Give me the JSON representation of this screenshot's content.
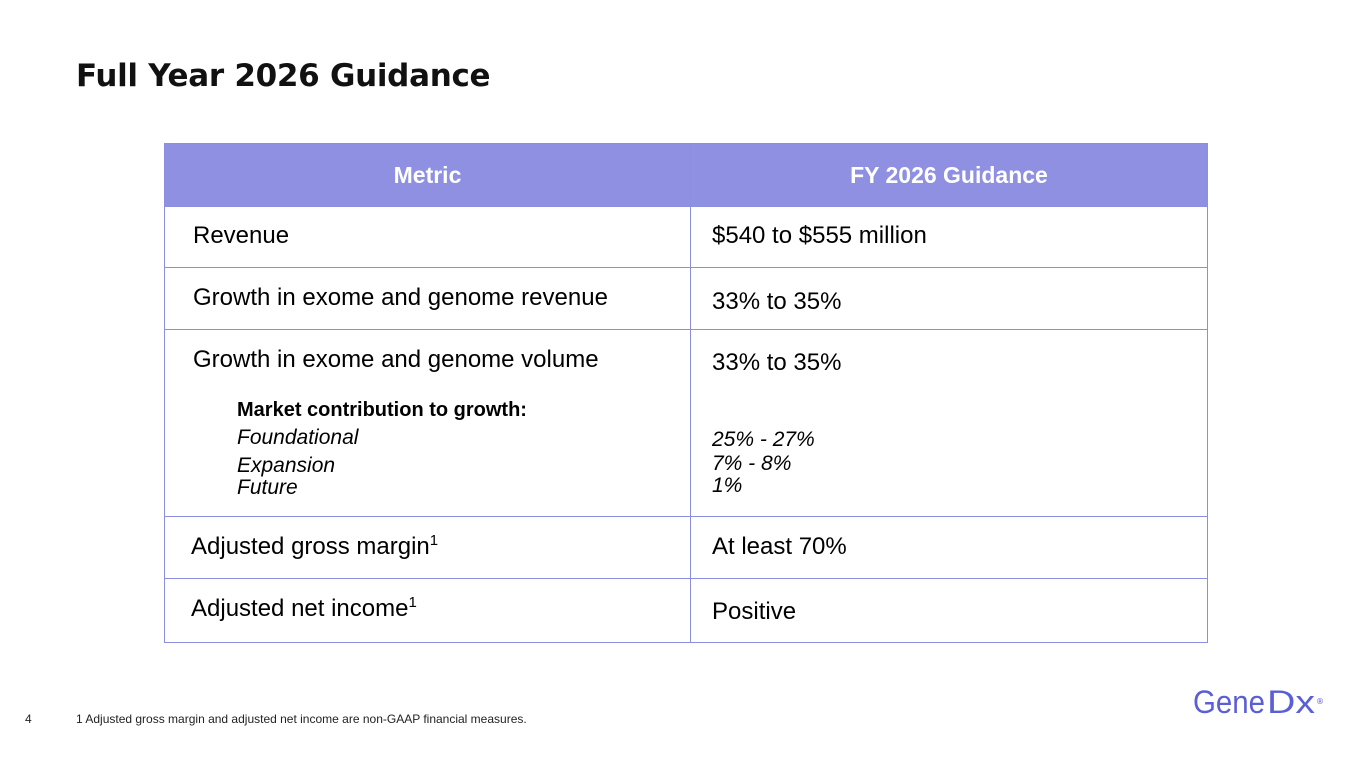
{
  "slide": {
    "title": "Full Year 2026 Guidance",
    "page_number": "4",
    "footnote": "1 Adjusted gross margin and adjusted net income are non-GAAP financial measures."
  },
  "table": {
    "headers": [
      "Metric",
      "FY 2026 Guidance"
    ],
    "rows": [
      {
        "metric": "Revenue",
        "guidance": "$540 to $555 million"
      },
      {
        "metric": "Growth in exome and genome revenue",
        "guidance": "33% to 35%"
      },
      {
        "metric": "Growth in exome and genome volume",
        "guidance": "33% to 35%"
      },
      {
        "metric": "Adjusted gross margin",
        "superscript": "1",
        "guidance": "At least 70%"
      },
      {
        "metric": "Adjusted net income",
        "superscript": "1",
        "guidance": "Positive"
      }
    ],
    "market_contribution": {
      "heading": "Market contribution to growth:",
      "items": [
        {
          "label": "Foundational",
          "value": "25% - 27%"
        },
        {
          "label": "Expansion",
          "value": "7% - 8%"
        },
        {
          "label": "Future",
          "value": "1%"
        }
      ]
    }
  },
  "logo": {
    "text_main": "Gene",
    "text_mark": "Dx",
    "registered": "®",
    "color": "#5b5fd6"
  },
  "colors": {
    "header_bg": "#8f90e2",
    "border": "#8c8ee0"
  }
}
